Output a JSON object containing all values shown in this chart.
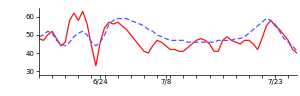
{
  "xlim": [
    0,
    59
  ],
  "ylim": [
    28,
    65
  ],
  "yticks": [
    30,
    40,
    50,
    60
  ],
  "xtick_positions": [
    14,
    29,
    54
  ],
  "xtick_labels": [
    "6/24",
    "7/8",
    "7/23"
  ],
  "blue_color": "#5555ff",
  "red_color": "#ff1111",
  "bg_color": "#ffffff",
  "linewidth": 0.9,
  "red_y": [
    48,
    47,
    50,
    52,
    48,
    44,
    46,
    58,
    62,
    58,
    63,
    56,
    44,
    33,
    46,
    54,
    57,
    56,
    57,
    55,
    53,
    50,
    47,
    44,
    41,
    40,
    44,
    47,
    46,
    44,
    42,
    42,
    41,
    41,
    43,
    45,
    47,
    48,
    47,
    45,
    41,
    41,
    47,
    49,
    47,
    46,
    45,
    47,
    47,
    45,
    42,
    48,
    55,
    58,
    55,
    53,
    50,
    47,
    42,
    40
  ],
  "blue_y": [
    49,
    50,
    52,
    51,
    47,
    45,
    44,
    46,
    49,
    51,
    52,
    50,
    46,
    44,
    46,
    50,
    56,
    58,
    59,
    59,
    59,
    58,
    57,
    56,
    55,
    53,
    52,
    50,
    49,
    48,
    47,
    47,
    47,
    47,
    46,
    46,
    46,
    46,
    46,
    46,
    46,
    47,
    47,
    47,
    47,
    48,
    48,
    49,
    51,
    53,
    55,
    57,
    59,
    58,
    56,
    52,
    48,
    46,
    44,
    41
  ]
}
